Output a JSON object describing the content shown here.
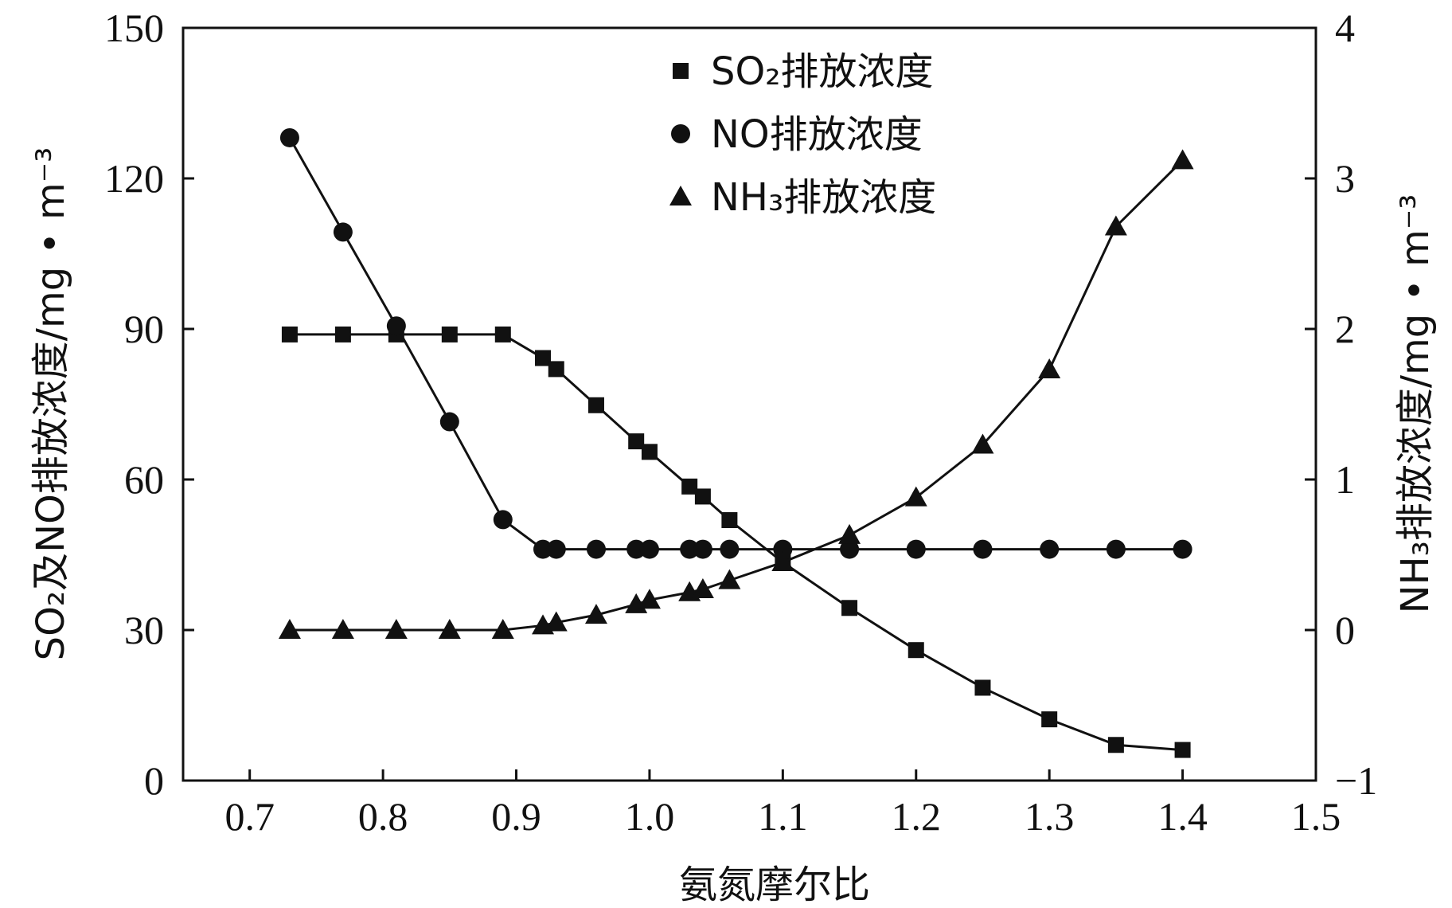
{
  "chart_data": {
    "type": "line",
    "title": "",
    "xlabel": "氨氮摩尔比",
    "ylabel_left": "SO₂及NO排放浓度/mg • m⁻³",
    "ylabel_right": "NH₃排放浓度/mg • m⁻³",
    "xlim": [
      0.65,
      1.5
    ],
    "ylim_left": [
      0,
      150
    ],
    "ylim_right": [
      -1,
      4
    ],
    "x_ticks": [
      0.7,
      0.8,
      0.9,
      1.0,
      1.1,
      1.2,
      1.3,
      1.4,
      1.5
    ],
    "x_tick_labels": [
      "0.7",
      "0.8",
      "0.9",
      "1.0",
      "1.1",
      "1.2",
      "1.3",
      "1.4",
      "1.5"
    ],
    "y_left_ticks": [
      0,
      30,
      60,
      90,
      120,
      150
    ],
    "y_left_tick_labels": [
      "0",
      "30",
      "60",
      "90",
      "120",
      "150"
    ],
    "y_right_ticks": [
      -1,
      0,
      1,
      2,
      3,
      4
    ],
    "y_right_tick_labels": [
      "−1",
      "0",
      "1",
      "2",
      "3",
      "4"
    ],
    "grid": false,
    "legend_position": "top-center",
    "series": [
      {
        "name": "SO₂排放浓度",
        "marker": "square",
        "axis": "left",
        "x": [
          0.73,
          0.77,
          0.81,
          0.85,
          0.89,
          0.92,
          0.93,
          0.96,
          0.99,
          1.0,
          1.03,
          1.04,
          1.06,
          1.1,
          1.15,
          1.2,
          1.25,
          1.3,
          1.35,
          1.4
        ],
        "y": [
          88.9,
          88.9,
          88.9,
          88.9,
          88.9,
          84.2,
          82.0,
          74.8,
          67.6,
          65.5,
          58.6,
          56.6,
          51.9,
          43.5,
          34.4,
          26.0,
          18.5,
          12.2,
          7.1,
          6.1
        ]
      },
      {
        "name": "NO排放浓度",
        "marker": "circle",
        "axis": "left",
        "x": [
          0.73,
          0.77,
          0.81,
          0.85,
          0.89,
          0.92,
          0.93,
          0.96,
          0.99,
          1.0,
          1.03,
          1.04,
          1.06,
          1.1,
          1.15,
          1.2,
          1.25,
          1.3,
          1.35,
          1.4
        ],
        "y": [
          128.1,
          109.3,
          90.6,
          71.5,
          52.0,
          46.1,
          46.1,
          46.1,
          46.1,
          46.1,
          46.1,
          46.1,
          46.1,
          46.1,
          46.1,
          46.1,
          46.1,
          46.1,
          46.1,
          46.1
        ]
      },
      {
        "name": "NH₃排放浓度",
        "marker": "triangle",
        "axis": "right",
        "x": [
          0.73,
          0.77,
          0.81,
          0.85,
          0.89,
          0.92,
          0.93,
          0.96,
          0.99,
          1.0,
          1.03,
          1.04,
          1.06,
          1.1,
          1.15,
          1.2,
          1.25,
          1.3,
          1.35,
          1.4
        ],
        "y": [
          0.0,
          0.0,
          0.0,
          0.0,
          0.0,
          0.03,
          0.05,
          0.1,
          0.17,
          0.2,
          0.25,
          0.27,
          0.33,
          0.45,
          0.63,
          0.88,
          1.23,
          1.73,
          2.68,
          3.12
        ]
      }
    ]
  }
}
